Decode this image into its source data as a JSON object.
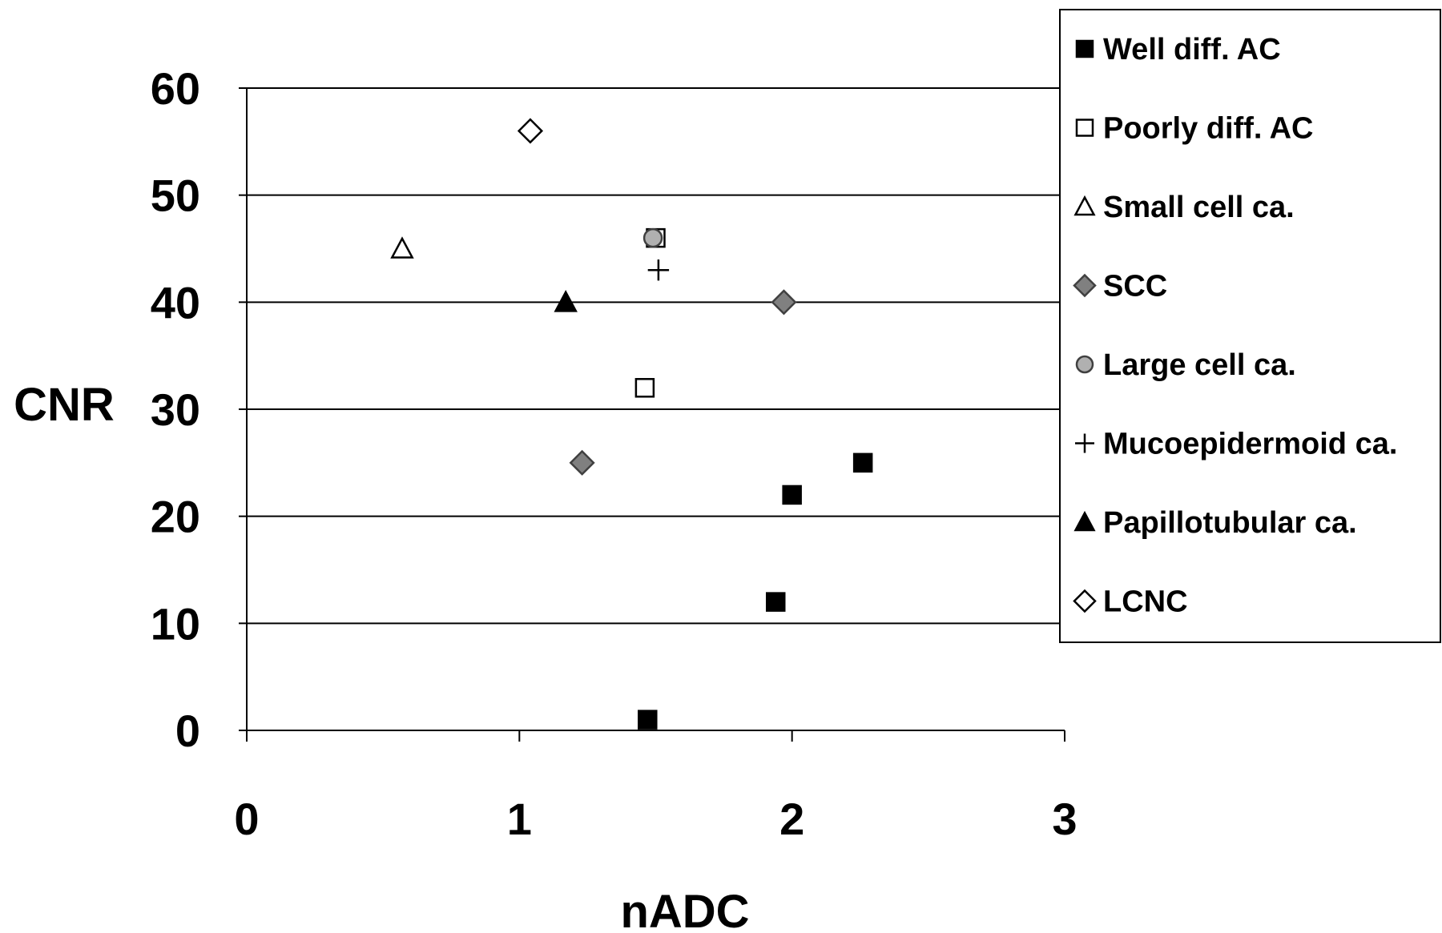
{
  "chart_data": {
    "type": "scatter",
    "title": "",
    "xlabel": "nADC",
    "ylabel": "CNR",
    "xlim": [
      0,
      3
    ],
    "ylim": [
      0,
      60
    ],
    "xticks": [
      0,
      1,
      2,
      3
    ],
    "yticks": [
      0,
      10,
      20,
      30,
      40,
      50,
      60
    ],
    "grid": "horizontal",
    "legend_position": "right",
    "series": [
      {
        "name": "Well diff. AC",
        "marker": "square",
        "fill": "#000000",
        "stroke": "#000000",
        "points": [
          [
            1.47,
            1
          ],
          [
            1.94,
            12
          ],
          [
            2.0,
            22
          ],
          [
            2.26,
            25
          ]
        ]
      },
      {
        "name": "Poorly diff. AC",
        "marker": "square",
        "fill": "#ffffff",
        "stroke": "#000000",
        "points": [
          [
            1.46,
            32
          ],
          [
            1.5,
            46
          ]
        ]
      },
      {
        "name": "Small cell ca.",
        "marker": "triangle",
        "fill": "#ffffff",
        "stroke": "#000000",
        "points": [
          [
            0.57,
            45
          ]
        ]
      },
      {
        "name": "SCC",
        "marker": "diamond",
        "fill": "#808080",
        "stroke": "#404040",
        "points": [
          [
            1.23,
            25
          ],
          [
            1.97,
            40
          ]
        ]
      },
      {
        "name": "Large cell ca.",
        "marker": "circle",
        "fill": "#b0b0b0",
        "stroke": "#404040",
        "points": [
          [
            1.49,
            46
          ]
        ]
      },
      {
        "name": "Mucoepidermoid ca.",
        "marker": "plus",
        "fill": "none",
        "stroke": "#000000",
        "points": [
          [
            1.51,
            43
          ]
        ]
      },
      {
        "name": "Papillotubular ca.",
        "marker": "triangle",
        "fill": "#000000",
        "stroke": "#000000",
        "points": [
          [
            1.17,
            40
          ]
        ]
      },
      {
        "name": "LCNC",
        "marker": "diamond",
        "fill": "#ffffff",
        "stroke": "#000000",
        "points": [
          [
            1.04,
            56
          ]
        ]
      }
    ]
  }
}
